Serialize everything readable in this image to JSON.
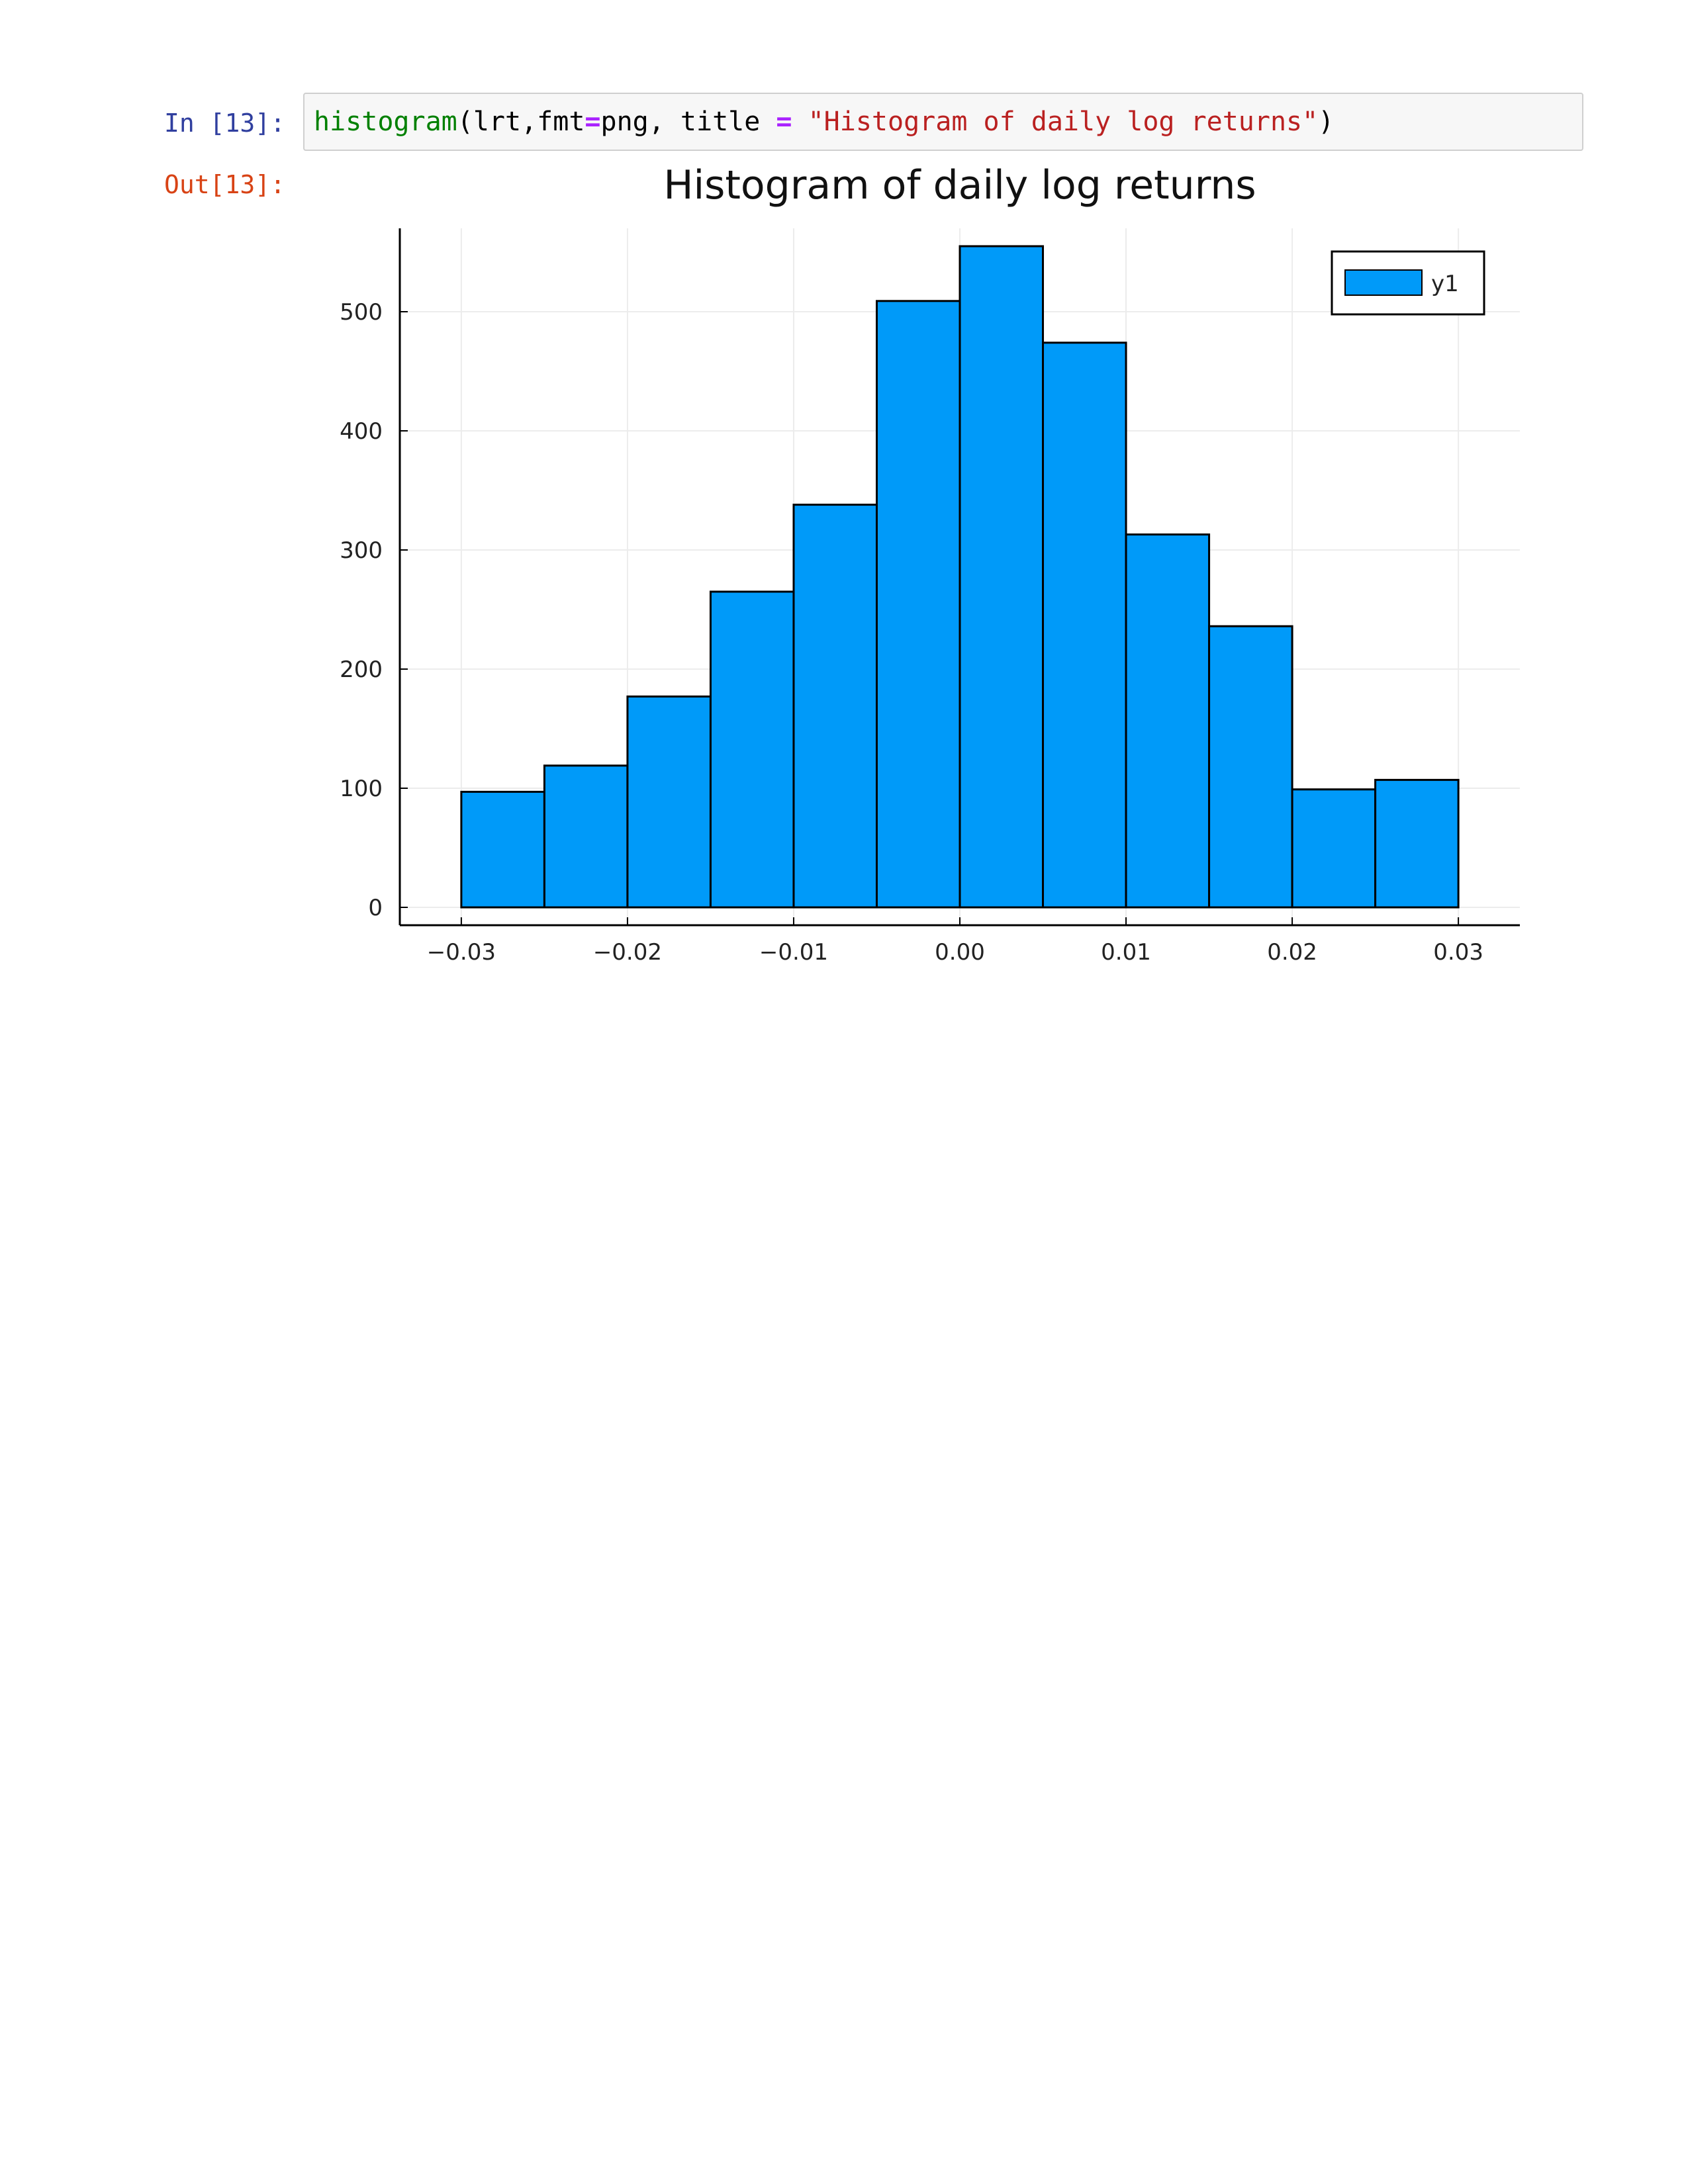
{
  "cell": {
    "in_prompt": "In [13]:",
    "out_prompt": "Out[13]:",
    "code": {
      "func": "histogram",
      "part1": "(lrt,fmt",
      "eq1": "=",
      "part2": "png, title ",
      "eq2": "=",
      "part3": " ",
      "string": "\"Histogram of daily log returns\"",
      "close": ")"
    }
  },
  "chart_data": {
    "type": "bar",
    "title": "Histogram of daily log returns",
    "xlabel": "",
    "ylabel": "",
    "bin_edges": [
      -0.03,
      -0.025,
      -0.02,
      -0.015,
      -0.01,
      -0.005,
      0.0,
      0.005,
      0.01,
      0.015,
      0.02,
      0.025,
      0.03
    ],
    "series": [
      {
        "name": "y1",
        "values": [
          97,
          119,
          177,
          265,
          338,
          509,
          555,
          474,
          313,
          236,
          99,
          107
        ]
      }
    ],
    "xlim": [
      -0.0337,
      0.0337
    ],
    "ylim": [
      -15,
      570
    ],
    "xticks": [
      -0.03,
      -0.02,
      -0.01,
      0.0,
      0.01,
      0.02,
      0.03
    ],
    "xtick_labels": [
      "−0.03",
      "−0.02",
      "−0.01",
      "0.00",
      "0.01",
      "0.02",
      "0.03"
    ],
    "yticks": [
      0,
      100,
      200,
      300,
      400,
      500
    ],
    "ytick_labels": [
      "0",
      "100",
      "200",
      "300",
      "400",
      "500"
    ],
    "grid": true,
    "legend_position": "top-right",
    "bar_color": "#009af9",
    "edge_color": "#000000"
  }
}
